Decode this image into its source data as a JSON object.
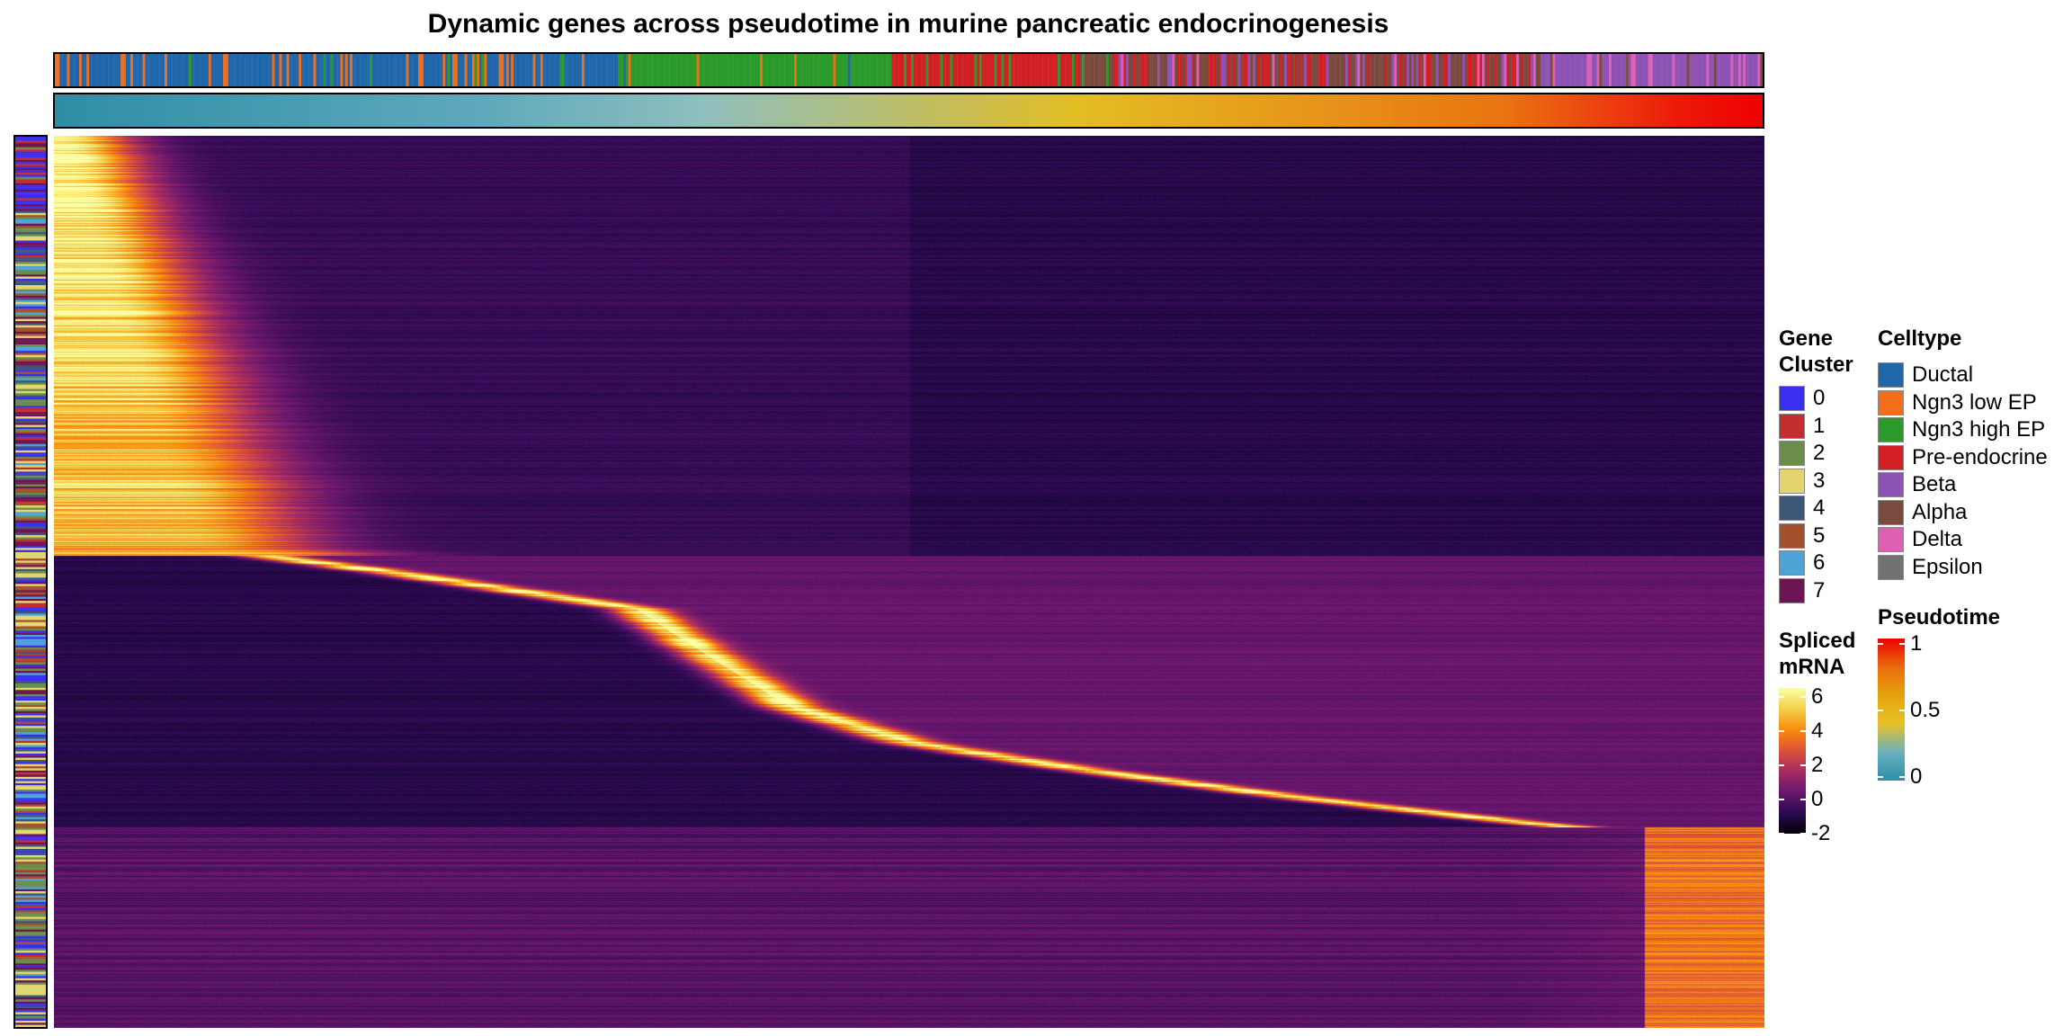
{
  "title": "Dynamic genes across pseudotime in murine pancreatic endocrinogenesis",
  "chart_data": {
    "type": "heatmap",
    "title": "Dynamic genes across pseudotime in murine pancreatic endocrinogenesis",
    "xlabel": "",
    "ylabel": "",
    "value_legend": {
      "title": "Spliced mRNA",
      "ticks": [
        6,
        4,
        2,
        0,
        -2
      ],
      "range": [
        -2,
        6.5
      ],
      "palette": [
        "#000004",
        "#2b0a52",
        "#6a176e",
        "#a52c60",
        "#dd513a",
        "#f98c0a",
        "#f3d14c",
        "#fcffa4"
      ]
    },
    "pseudotime_legend": {
      "title": "Pseudotime",
      "ticks": [
        1,
        0.5,
        0
      ],
      "range": [
        0,
        1
      ],
      "palette": [
        "#2e8ea6",
        "#6ab0bf",
        "#e8c12a",
        "#e5a30b",
        "#ea6b0f",
        "#ef0000"
      ]
    },
    "gene_cluster_legend": {
      "title": "Gene Cluster",
      "items": [
        {
          "label": "0",
          "color": "#3a2ff0"
        },
        {
          "label": "1",
          "color": "#c42d2d"
        },
        {
          "label": "2",
          "color": "#6a8e4a"
        },
        {
          "label": "3",
          "color": "#e3d56e"
        },
        {
          "label": "4",
          "color": "#3d5779"
        },
        {
          "label": "5",
          "color": "#a3502d"
        },
        {
          "label": "6",
          "color": "#4ea3d6"
        },
        {
          "label": "7",
          "color": "#6e1452"
        }
      ]
    },
    "celltype_legend": {
      "title": "Celltype",
      "items": [
        {
          "label": "Ductal",
          "color": "#1f67aa"
        },
        {
          "label": "Ngn3 low EP",
          "color": "#f26e1b"
        },
        {
          "label": "Ngn3 high EP",
          "color": "#2a9a2a"
        },
        {
          "label": "Pre-endocrine",
          "color": "#d11f24"
        },
        {
          "label": "Beta",
          "color": "#8c52b4"
        },
        {
          "label": "Alpha",
          "color": "#7b4a3f"
        },
        {
          "label": "Delta",
          "color": "#de5fb4"
        },
        {
          "label": "Epsilon",
          "color": "#727272"
        }
      ]
    },
    "celltype_order_along_pseudotime": [
      {
        "celltype": "Ductal",
        "start": 0.0,
        "end": 0.33
      },
      {
        "celltype": "Ngn3 high EP",
        "start": 0.33,
        "end": 0.49
      },
      {
        "celltype": "Pre-endocrine",
        "start": 0.49,
        "end": 0.72
      },
      {
        "celltype": "Alpha",
        "start": 0.6,
        "end": 0.87
      },
      {
        "celltype": "Beta",
        "start": 0.85,
        "end": 1.0
      }
    ],
    "peak_trend": {
      "description_points_pseudotime": [
        0.0,
        0.08,
        0.2,
        0.34,
        0.38,
        0.43,
        0.5,
        0.6,
        0.72,
        0.86,
        0.92,
        1.0
      ],
      "description_points_gene_fraction": [
        0.0,
        0.46,
        0.49,
        0.53,
        0.58,
        0.64,
        0.68,
        0.71,
        0.74,
        0.77,
        0.78,
        1.0
      ],
      "max_value": 6.5,
      "baseline_value": -1
    }
  }
}
